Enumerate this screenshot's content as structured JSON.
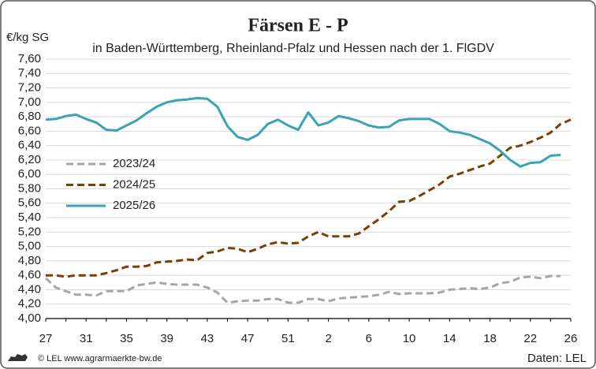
{
  "chart_data": {
    "type": "line",
    "title": "Färsen E - P",
    "subtitle": "in Baden-Württemberg, Rheinland-Pfalz und Hessen nach der 1. FlGDV",
    "y_label": "€/kg SG",
    "source": "Daten: LEL",
    "copyright": "© LEL www.agrarmaerkte-bw.de",
    "categories": [
      "27",
      null,
      null,
      null,
      "31",
      null,
      null,
      null,
      "35",
      null,
      null,
      null,
      "39",
      null,
      null,
      null,
      "43",
      null,
      null,
      null,
      "47",
      null,
      null,
      null,
      "51",
      null,
      null,
      null,
      "2",
      null,
      null,
      null,
      "6",
      null,
      null,
      null,
      "10",
      null,
      null,
      null,
      "14",
      null,
      null,
      null,
      "18",
      null,
      null,
      null,
      "22",
      null,
      null,
      null,
      "26"
    ],
    "series": [
      {
        "name": "2023/24",
        "color": "#a6a6a6",
        "dash": true,
        "values": [
          4.56,
          4.43,
          4.38,
          4.33,
          4.33,
          4.32,
          4.38,
          4.38,
          4.38,
          4.46,
          4.48,
          4.5,
          4.48,
          4.47,
          4.47,
          4.47,
          4.43,
          4.36,
          4.22,
          4.24,
          4.25,
          4.25,
          4.27,
          4.27,
          4.22,
          4.22,
          4.27,
          4.27,
          4.24,
          4.28,
          4.29,
          4.3,
          4.31,
          4.33,
          4.37,
          4.34,
          4.35,
          4.35,
          4.35,
          4.36,
          4.4,
          4.41,
          4.42,
          4.41,
          4.43,
          4.49,
          4.51,
          4.57,
          4.58,
          4.56,
          4.59,
          4.59,
          null
        ]
      },
      {
        "name": "2024/25",
        "color": "#7b3f00",
        "dash": true,
        "values": [
          4.6,
          4.6,
          4.58,
          4.6,
          4.6,
          4.6,
          4.63,
          4.67,
          4.72,
          4.72,
          4.73,
          4.78,
          4.79,
          4.8,
          4.82,
          4.81,
          4.91,
          4.93,
          4.98,
          4.97,
          4.92,
          4.97,
          5.03,
          5.06,
          5.04,
          5.05,
          5.14,
          5.2,
          5.14,
          5.14,
          5.14,
          5.18,
          5.28,
          5.38,
          5.49,
          5.62,
          5.63,
          5.7,
          5.78,
          5.86,
          5.97,
          6.01,
          6.06,
          6.11,
          6.15,
          6.26,
          6.37,
          6.4,
          6.45,
          6.51,
          6.58,
          6.7,
          6.76
        ]
      },
      {
        "name": "2025/26",
        "color": "#3aa3b5",
        "dash": false,
        "values": [
          6.76,
          6.77,
          6.81,
          6.83,
          6.77,
          6.72,
          6.62,
          6.61,
          6.68,
          6.75,
          6.85,
          6.94,
          7.0,
          7.03,
          7.04,
          7.06,
          7.05,
          6.94,
          6.67,
          6.52,
          6.48,
          6.55,
          6.7,
          6.76,
          6.68,
          6.62,
          6.86,
          6.68,
          6.72,
          6.81,
          6.78,
          6.74,
          6.68,
          6.65,
          6.66,
          6.75,
          6.77,
          6.77,
          6.77,
          6.7,
          6.6,
          6.58,
          6.55,
          6.49,
          6.43,
          6.33,
          6.2,
          6.11,
          6.16,
          6.17,
          6.26,
          6.27,
          null
        ]
      }
    ],
    "ylim": [
      4,
      7.6
    ],
    "yticks": [
      {
        "value": 4,
        "label": "4,00"
      },
      {
        "value": 4.2,
        "label": "4,20"
      },
      {
        "value": 4.4,
        "label": "4,40"
      },
      {
        "value": 4.6,
        "label": "4,60"
      },
      {
        "value": 4.8,
        "label": "4,80"
      },
      {
        "value": 5,
        "label": "5,00"
      },
      {
        "value": 5.2,
        "label": "5,20"
      },
      {
        "value": 5.4,
        "label": "5,40"
      },
      {
        "value": 5.6,
        "label": "5,60"
      },
      {
        "value": 5.8,
        "label": "5,80"
      },
      {
        "value": 6,
        "label": "6,00"
      },
      {
        "value": 6.2,
        "label": "6,20"
      },
      {
        "value": 6.4,
        "label": "6,40"
      },
      {
        "value": 6.6,
        "label": "6,60"
      },
      {
        "value": 6.8,
        "label": "6,80"
      },
      {
        "value": 7,
        "label": "7,00"
      },
      {
        "value": 7.2,
        "label": "7,20"
      },
      {
        "value": 7.4,
        "label": "7,40"
      },
      {
        "value": 7.6,
        "label": "7,60"
      }
    ],
    "grid": true,
    "legend": "left"
  }
}
